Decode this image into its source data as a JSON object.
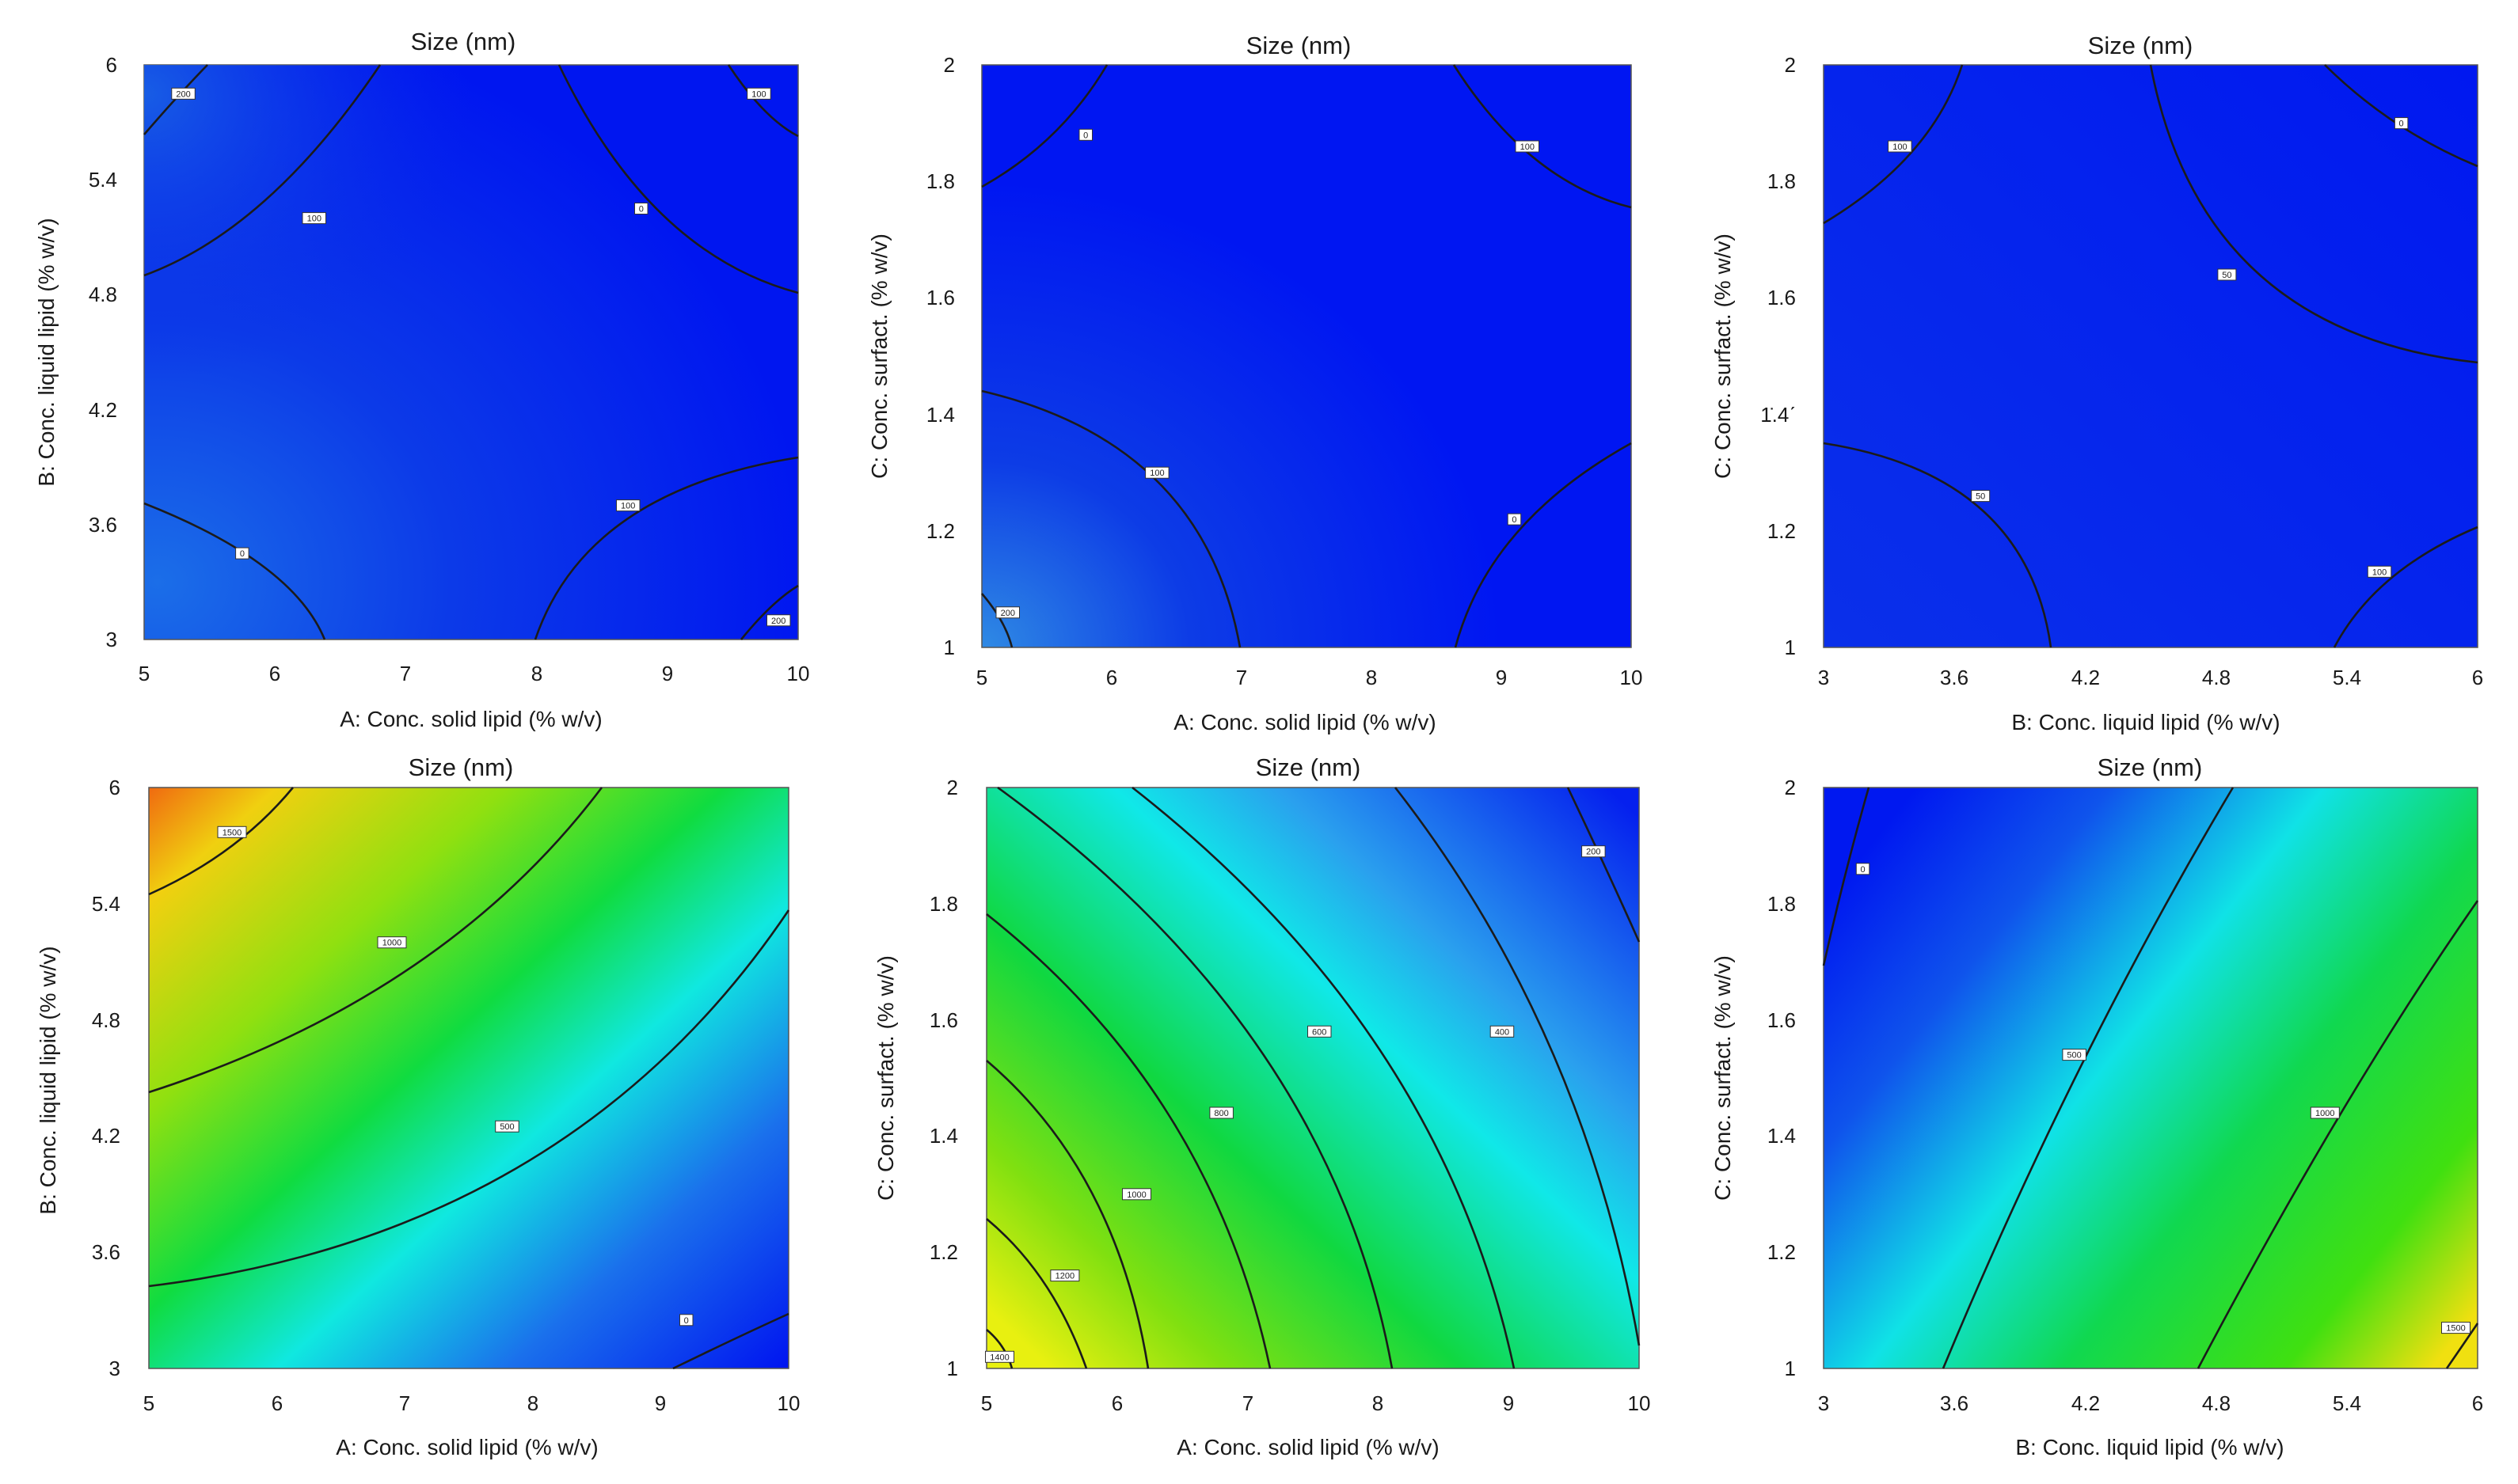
{
  "chart_data": [
    {
      "type": "contour",
      "title": "Size (nm)",
      "xlabel": "A: Conc. solid lipid (% w/v)",
      "ylabel": "B: Conc. liquid lipid  (% w/v)",
      "xticks": [
        "5",
        "6",
        "7",
        "8",
        "9",
        "10"
      ],
      "yticks": [
        "3",
        "3.6",
        "4.2",
        "4.8",
        "5.4",
        "6"
      ],
      "xlim": [
        5,
        10
      ],
      "ylim": [
        3,
        6
      ],
      "colormap": "blue",
      "contour_labels": [
        {
          "text": "200",
          "x": 5.3,
          "y": 5.85
        },
        {
          "text": "100",
          "x": 9.7,
          "y": 5.85
        },
        {
          "text": "100",
          "x": 6.3,
          "y": 5.2
        },
        {
          "text": "0",
          "x": 8.8,
          "y": 5.25
        },
        {
          "text": "0",
          "x": 5.75,
          "y": 3.45
        },
        {
          "text": "100",
          "x": 8.7,
          "y": 3.7
        },
        {
          "text": "200",
          "x": 9.85,
          "y": 3.1
        }
      ]
    },
    {
      "type": "contour",
      "title": "Size (nm)",
      "xlabel": "A: Conc. solid lipid (% w/v)",
      "ylabel": "C: Conc. surfact. (% w/v)",
      "xticks": [
        "5",
        "6",
        "7",
        "8",
        "9",
        "10"
      ],
      "yticks": [
        "1",
        "1.2",
        "1.4",
        "1.6",
        "1.8",
        "2"
      ],
      "xlim": [
        5,
        10
      ],
      "ylim": [
        1,
        2
      ],
      "colormap": "blue",
      "contour_labels": [
        {
          "text": "0",
          "x": 5.8,
          "y": 1.88
        },
        {
          "text": "100",
          "x": 9.2,
          "y": 1.86
        },
        {
          "text": "100",
          "x": 6.35,
          "y": 1.3
        },
        {
          "text": "0",
          "x": 9.1,
          "y": 1.22
        },
        {
          "text": "200",
          "x": 5.2,
          "y": 1.06
        }
      ]
    },
    {
      "type": "contour",
      "title": "Size (nm)",
      "xlabel": "B: Conc. liquid lipid  (% w/v)",
      "ylabel": "C: Conc. surfact. (% w/v)",
      "ytick_note": "1̇.4ˊ",
      "xticks": [
        "3",
        "3.6",
        "4.2",
        "4.8",
        "5.4",
        "6"
      ],
      "yticks": [
        "1",
        "1.2",
        "1.4",
        "1.6",
        "1.8",
        "2"
      ],
      "xlim": [
        3,
        6
      ],
      "ylim": [
        1,
        2
      ],
      "colormap": "blue",
      "contour_labels": [
        {
          "text": "100",
          "x": 3.35,
          "y": 1.86
        },
        {
          "text": "0",
          "x": 5.65,
          "y": 1.9
        },
        {
          "text": "50",
          "x": 4.85,
          "y": 1.64
        },
        {
          "text": "50",
          "x": 3.72,
          "y": 1.26
        },
        {
          "text": "100",
          "x": 5.55,
          "y": 1.13
        }
      ]
    },
    {
      "type": "contour",
      "title": "Size (nm)",
      "xlabel": "A: Conc. solid lipid (% w/v)",
      "ylabel": "B: Conc. liquid lipid  (% w/v)",
      "xticks": [
        "5",
        "6",
        "7",
        "8",
        "9",
        "10"
      ],
      "yticks": [
        "3",
        "3.6",
        "4.2",
        "4.8",
        "5.4",
        "6"
      ],
      "xlim": [
        5,
        10
      ],
      "ylim": [
        3,
        6
      ],
      "colormap": "jet",
      "contour_labels": [
        {
          "text": "1500",
          "x": 5.65,
          "y": 5.77
        },
        {
          "text": "1000",
          "x": 6.9,
          "y": 5.2
        },
        {
          "text": "500",
          "x": 7.8,
          "y": 4.25
        },
        {
          "text": "0",
          "x": 9.2,
          "y": 3.25
        }
      ]
    },
    {
      "type": "contour",
      "title": "Size (nm)",
      "xlabel": "A: Conc. solid lipid (% w/v)",
      "ylabel": "C: Conc. surfact. (% w/v)",
      "xticks": [
        "5",
        "6",
        "7",
        "8",
        "9",
        "10"
      ],
      "yticks": [
        "1",
        "1.2",
        "1.4",
        "1.6",
        "1.8",
        "2"
      ],
      "xlim": [
        5,
        10
      ],
      "ylim": [
        1,
        2
      ],
      "colormap": "jet",
      "contour_labels": [
        {
          "text": "200",
          "x": 9.65,
          "y": 1.89
        },
        {
          "text": "400",
          "x": 8.95,
          "y": 1.58
        },
        {
          "text": "600",
          "x": 7.55,
          "y": 1.58
        },
        {
          "text": "800",
          "x": 6.8,
          "y": 1.44
        },
        {
          "text": "1000",
          "x": 6.15,
          "y": 1.3
        },
        {
          "text": "1200",
          "x": 5.6,
          "y": 1.16
        },
        {
          "text": "1400",
          "x": 5.1,
          "y": 1.02
        }
      ]
    },
    {
      "type": "contour",
      "title": "Size (nm)",
      "xlabel": "B: Conc. liquid lipid  (% w/v)",
      "ylabel": "C: Conc. surfact. (% w/v)",
      "xticks": [
        "3",
        "3.6",
        "4.2",
        "4.8",
        "5.4",
        "6"
      ],
      "yticks": [
        "1",
        "1.2",
        "1.4",
        "1.6",
        "1.8",
        "2"
      ],
      "xlim": [
        3,
        6
      ],
      "ylim": [
        1,
        2
      ],
      "colormap": "jet",
      "contour_labels": [
        {
          "text": "0",
          "x": 3.18,
          "y": 1.86
        },
        {
          "text": "500",
          "x": 4.15,
          "y": 1.54
        },
        {
          "text": "1000",
          "x": 5.3,
          "y": 1.44
        },
        {
          "text": "1500",
          "x": 5.9,
          "y": 1.07
        }
      ]
    }
  ]
}
